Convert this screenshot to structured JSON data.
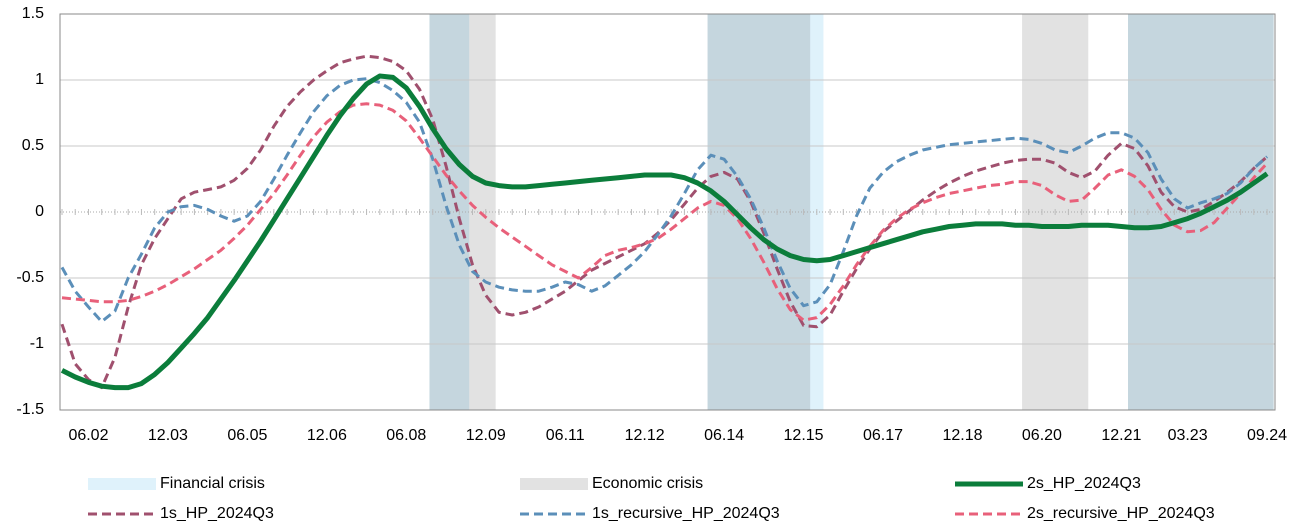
{
  "chart_data": {
    "type": "line",
    "categories": [
      null,
      null,
      "06.02",
      null,
      null,
      null,
      null,
      null,
      "12.03",
      null,
      null,
      null,
      null,
      null,
      "06.05",
      null,
      null,
      null,
      null,
      null,
      "12.06",
      null,
      null,
      null,
      null,
      null,
      "06.08",
      null,
      null,
      null,
      null,
      null,
      "12.09",
      null,
      null,
      null,
      null,
      null,
      "06.11",
      null,
      null,
      null,
      null,
      null,
      "12.12",
      null,
      null,
      null,
      null,
      null,
      "06.14",
      null,
      null,
      null,
      null,
      null,
      "12.15",
      null,
      null,
      null,
      null,
      null,
      "06.17",
      null,
      null,
      null,
      null,
      null,
      "12.18",
      null,
      null,
      null,
      null,
      null,
      "06.20",
      null,
      null,
      null,
      null,
      null,
      "12.21",
      null,
      null,
      null,
      null,
      "03.23",
      null,
      null,
      null,
      null,
      null,
      "09.24"
    ],
    "ylim": [
      -1.5,
      1.5
    ],
    "yticks": [
      1.5,
      1,
      0.5,
      0,
      -0.5,
      -1,
      -1.5
    ],
    "grid": true,
    "spans": [
      {
        "name": "Financial crisis",
        "color": "#dff2fb",
        "ranges": [
          [
            27.75,
            30.75
          ],
          [
            48.75,
            57.5
          ],
          [
            80.5,
            91.5
          ]
        ]
      },
      {
        "name": "Economic crisis",
        "color": "#e2e2e2",
        "ranges": [
          [
            27.75,
            32.75
          ],
          [
            48.75,
            56.5
          ],
          [
            72.5,
            77.5
          ],
          [
            80.5,
            91.5
          ]
        ]
      }
    ],
    "series": [
      {
        "name": "2s_HP_2024Q3",
        "color": "#0b7d3b",
        "dashed": false,
        "values": [
          -1.2,
          -1.25,
          -1.29,
          -1.32,
          -1.33,
          -1.33,
          -1.3,
          -1.23,
          -1.14,
          -1.03,
          -0.92,
          -0.8,
          -0.66,
          -0.52,
          -0.37,
          -0.22,
          -0.06,
          0.1,
          0.26,
          0.42,
          0.58,
          0.73,
          0.86,
          0.97,
          1.03,
          1.02,
          0.94,
          0.8,
          0.63,
          0.48,
          0.36,
          0.27,
          0.22,
          0.2,
          0.19,
          0.19,
          0.2,
          0.21,
          0.22,
          0.23,
          0.24,
          0.25,
          0.26,
          0.27,
          0.28,
          0.28,
          0.28,
          0.26,
          0.22,
          0.16,
          0.08,
          -0.02,
          -0.12,
          -0.21,
          -0.28,
          -0.33,
          -0.36,
          -0.37,
          -0.36,
          -0.33,
          -0.3,
          -0.27,
          -0.24,
          -0.21,
          -0.18,
          -0.15,
          -0.13,
          -0.11,
          -0.1,
          -0.09,
          -0.09,
          -0.09,
          -0.1,
          -0.1,
          -0.11,
          -0.11,
          -0.11,
          -0.1,
          -0.1,
          -0.1,
          -0.11,
          -0.12,
          -0.12,
          -0.11,
          -0.08,
          -0.05,
          -0.01,
          0.04,
          0.09,
          0.15,
          0.22,
          0.29
        ]
      },
      {
        "name": "1s_HP_2024Q3",
        "color": "#a0506e",
        "dashed": true,
        "values": [
          -0.85,
          -1.15,
          -1.27,
          -1.33,
          -1.1,
          -0.72,
          -0.4,
          -0.2,
          -0.05,
          0.1,
          0.15,
          0.17,
          0.19,
          0.24,
          0.33,
          0.47,
          0.65,
          0.8,
          0.91,
          1.0,
          1.07,
          1.13,
          1.16,
          1.18,
          1.17,
          1.14,
          1.07,
          0.93,
          0.7,
          0.35,
          -0.05,
          -0.4,
          -0.63,
          -0.76,
          -0.78,
          -0.76,
          -0.72,
          -0.66,
          -0.6,
          -0.52,
          -0.44,
          -0.39,
          -0.34,
          -0.29,
          -0.24,
          -0.16,
          -0.06,
          0.06,
          0.18,
          0.27,
          0.3,
          0.25,
          0.08,
          -0.16,
          -0.43,
          -0.68,
          -0.86,
          -0.87,
          -0.78,
          -0.6,
          -0.43,
          -0.28,
          -0.15,
          -0.07,
          0.01,
          0.09,
          0.16,
          0.22,
          0.27,
          0.31,
          0.34,
          0.37,
          0.39,
          0.4,
          0.4,
          0.37,
          0.3,
          0.26,
          0.31,
          0.43,
          0.52,
          0.48,
          0.35,
          0.15,
          0.04,
          0.0,
          0.02,
          0.08,
          0.15,
          0.23,
          0.33,
          0.42
        ]
      },
      {
        "name": "1s_recursive_HP_2024Q3",
        "color": "#5b8fb9",
        "dashed": true,
        "values": [
          -0.42,
          -0.6,
          -0.72,
          -0.83,
          -0.75,
          -0.5,
          -0.32,
          -0.12,
          0.0,
          0.04,
          0.05,
          0.02,
          -0.03,
          -0.07,
          -0.03,
          0.08,
          0.25,
          0.43,
          0.6,
          0.76,
          0.88,
          0.96,
          1.0,
          1.01,
          0.98,
          0.92,
          0.83,
          0.68,
          0.4,
          0.05,
          -0.25,
          -0.45,
          -0.53,
          -0.57,
          -0.59,
          -0.6,
          -0.6,
          -0.57,
          -0.53,
          -0.55,
          -0.6,
          -0.56,
          -0.48,
          -0.4,
          -0.3,
          -0.17,
          -0.03,
          0.14,
          0.32,
          0.43,
          0.4,
          0.27,
          0.1,
          -0.12,
          -0.37,
          -0.58,
          -0.71,
          -0.68,
          -0.55,
          -0.3,
          -0.03,
          0.18,
          0.3,
          0.38,
          0.43,
          0.47,
          0.49,
          0.51,
          0.52,
          0.53,
          0.54,
          0.55,
          0.56,
          0.55,
          0.52,
          0.47,
          0.45,
          0.5,
          0.56,
          0.6,
          0.6,
          0.56,
          0.45,
          0.25,
          0.1,
          0.03,
          0.07,
          0.1,
          0.14,
          0.22,
          0.33,
          0.42
        ]
      },
      {
        "name": "2s_recursive_HP_2024Q3",
        "color": "#e8607a",
        "dashed": true,
        "values": [
          -0.65,
          -0.66,
          -0.67,
          -0.68,
          -0.68,
          -0.67,
          -0.64,
          -0.6,
          -0.55,
          -0.49,
          -0.43,
          -0.36,
          -0.29,
          -0.2,
          -0.1,
          0.02,
          0.14,
          0.28,
          0.43,
          0.57,
          0.68,
          0.76,
          0.81,
          0.82,
          0.81,
          0.77,
          0.69,
          0.56,
          0.42,
          0.28,
          0.16,
          0.05,
          -0.04,
          -0.12,
          -0.19,
          -0.26,
          -0.33,
          -0.4,
          -0.45,
          -0.5,
          -0.42,
          -0.33,
          -0.29,
          -0.27,
          -0.24,
          -0.2,
          -0.13,
          -0.05,
          0.03,
          0.08,
          0.05,
          -0.05,
          -0.2,
          -0.38,
          -0.58,
          -0.74,
          -0.82,
          -0.8,
          -0.7,
          -0.56,
          -0.4,
          -0.26,
          -0.14,
          -0.05,
          0.02,
          0.07,
          0.11,
          0.14,
          0.16,
          0.18,
          0.2,
          0.21,
          0.23,
          0.23,
          0.2,
          0.13,
          0.08,
          0.09,
          0.18,
          0.28,
          0.32,
          0.27,
          0.17,
          0.02,
          -0.1,
          -0.15,
          -0.14,
          -0.08,
          0.03,
          0.14,
          0.26,
          0.37
        ]
      }
    ]
  }
}
